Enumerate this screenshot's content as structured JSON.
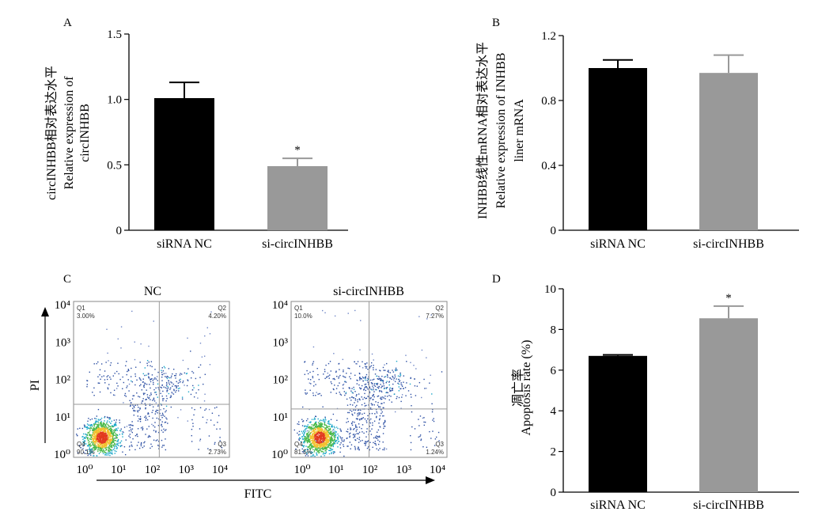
{
  "charts": [
    {
      "panel": "A",
      "type": "bar",
      "categories": [
        "siRNA NC",
        "si-circINHBB"
      ],
      "values": [
        1.01,
        0.49
      ],
      "errors": [
        0.12,
        0.06
      ],
      "significance": [
        "",
        "*"
      ],
      "ylabel_lines": [
        "circINHBB相对表达水平",
        "Relative expression of",
        "circINHBB"
      ],
      "ylim": [
        0,
        1.5
      ],
      "yticks": [
        "0",
        "0.5",
        "1.0",
        "1.5"
      ],
      "ytick_values": [
        0,
        0.5,
        1.0,
        1.5
      ],
      "colors": [
        "#000000",
        "#999999"
      ]
    },
    {
      "panel": "B",
      "type": "bar",
      "categories": [
        "siRNA NC",
        "si-circINHBB"
      ],
      "values": [
        1.0,
        0.97
      ],
      "errors": [
        0.05,
        0.11
      ],
      "significance": [
        "",
        ""
      ],
      "ylabel_lines": [
        "INHBB线性mRNA相对表达水平",
        "Relative expression of INHBB",
        "liner mRNA"
      ],
      "ylim": [
        0,
        1.2
      ],
      "yticks": [
        "0",
        "0.4",
        "0.8",
        "1.2"
      ],
      "ytick_values": [
        0,
        0.4,
        0.8,
        1.2
      ],
      "colors": [
        "#000000",
        "#999999"
      ]
    },
    {
      "panel": "D",
      "type": "bar",
      "categories": [
        "siRNA NC",
        "si-circINHBB"
      ],
      "values": [
        6.7,
        8.55
      ],
      "errors": [
        0.05,
        0.6
      ],
      "significance": [
        "",
        "*"
      ],
      "ylabel_lines": [
        "凋亡率",
        "Apoptosis rate (%)"
      ],
      "ylim": [
        0,
        10
      ],
      "yticks": [
        "0",
        "2",
        "4",
        "6",
        "8",
        "10"
      ],
      "ytick_values": [
        0,
        2,
        4,
        6,
        8,
        10
      ],
      "colors": [
        "#000000",
        "#999999"
      ]
    }
  ],
  "chart_data": {
    "type": "scatter",
    "panel": "C",
    "xlabel": "FITC",
    "ylabel": "PI",
    "axis_ticks": [
      "10⁰",
      "10¹",
      "10²",
      "10³",
      "10⁴"
    ],
    "plots": [
      {
        "title": "NC",
        "quadrants": {
          "Q1": "3.00%",
          "Q2": "4.20%",
          "Q3": "2.73%",
          "Q4": "90.1%"
        },
        "quadrant_names": [
          "Q1",
          "Q2",
          "Q3",
          "Q4"
        ]
      },
      {
        "title": "si-circINHBB",
        "quadrants": {
          "Q1": "10.0%",
          "Q2": "7.27%",
          "Q3": "1.24%",
          "Q4": "81.5%"
        },
        "quadrant_names": [
          "Q1",
          "Q2",
          "Q3",
          "Q4"
        ]
      }
    ]
  }
}
